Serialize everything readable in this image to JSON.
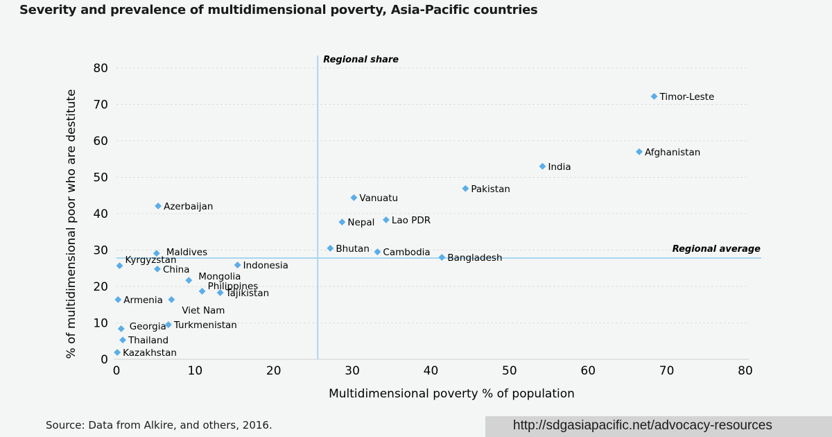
{
  "title": "Severity and prevalence of multidimensional poverty, Asia-Pacific countries",
  "source": "Source: Data from Alkire, and others, 2016.",
  "url": "http://sdgasiapacific.net/advocacy-resources",
  "colors": {
    "point": "#5aaee8",
    "reference_line": "#a8d6ee",
    "grid": "#dcdcdc",
    "background": "#f4f6f6",
    "url_box": "#d3d3d3"
  },
  "chart_data": {
    "type": "scatter",
    "title": "Severity and prevalence of multidimensional poverty, Asia-Pacific countries",
    "xlabel": "Multidimensional poverty % of population",
    "ylabel": "% of multidimensional poor who are destitute",
    "xlim": [
      0,
      80
    ],
    "ylim": [
      0,
      80
    ],
    "xticks": [
      0,
      10,
      20,
      30,
      40,
      50,
      60,
      70,
      80
    ],
    "yticks": [
      0,
      10,
      20,
      30,
      40,
      50,
      60,
      70,
      80
    ],
    "grid": "horizontal dotted",
    "reference_lines": [
      {
        "label": "Regional share",
        "axis": "x",
        "value": 25.6
      },
      {
        "label": "Regional average",
        "axis": "y",
        "value": 27.8
      }
    ],
    "points": [
      {
        "label": "Timor-Leste",
        "x": 68.4,
        "y": 72.2
      },
      {
        "label": "Afghanistan",
        "x": 66.5,
        "y": 57.0
      },
      {
        "label": "India",
        "x": 54.2,
        "y": 53.0
      },
      {
        "label": "Pakistan",
        "x": 44.4,
        "y": 46.9
      },
      {
        "label": "Vanuatu",
        "x": 30.2,
        "y": 44.4
      },
      {
        "label": "Lao PDR",
        "x": 34.3,
        "y": 38.3
      },
      {
        "label": "Nepal",
        "x": 28.7,
        "y": 37.7
      },
      {
        "label": "Bhutan",
        "x": 27.2,
        "y": 30.5
      },
      {
        "label": "Cambodia",
        "x": 33.2,
        "y": 29.5
      },
      {
        "label": "Bangladesh",
        "x": 41.4,
        "y": 28.0
      },
      {
        "label": "Azerbaijan",
        "x": 5.3,
        "y": 42.1
      },
      {
        "label": "Maldives",
        "x": 5.1,
        "y": 29.1
      },
      {
        "label": "Kyrgyzstan",
        "x": 0.4,
        "y": 25.7
      },
      {
        "label": "China",
        "x": 5.2,
        "y": 24.8
      },
      {
        "label": "Indonesia",
        "x": 15.4,
        "y": 25.9
      },
      {
        "label": "Mongolia",
        "x": 9.2,
        "y": 21.7
      },
      {
        "label": "Philippines",
        "x": 10.9,
        "y": 18.7
      },
      {
        "label": "Tajikistan",
        "x": 13.2,
        "y": 18.3
      },
      {
        "label": "Armenia",
        "x": 0.2,
        "y": 16.4
      },
      {
        "label": "Viet Nam",
        "x": 7.0,
        "y": 16.4
      },
      {
        "label": "Georgia",
        "x": 0.6,
        "y": 8.4
      },
      {
        "label": "Turkmenistan",
        "x": 6.6,
        "y": 9.5
      },
      {
        "label": "Thailand",
        "x": 0.8,
        "y": 5.3
      },
      {
        "label": "Kazakhstan",
        "x": 0.1,
        "y": 1.9
      }
    ]
  }
}
